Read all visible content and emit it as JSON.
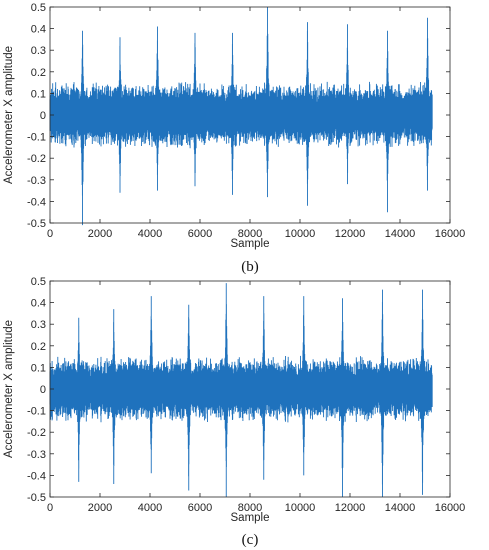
{
  "colors": {
    "series": "#1f72bd",
    "axis": "#262626",
    "background": "#ffffff"
  },
  "chart_data": [
    {
      "type": "line",
      "caption": "(b)",
      "title": "",
      "xlabel": "Sample",
      "ylabel": "Accelerometer X amplitude",
      "xlim": [
        0,
        16000
      ],
      "ylim": [
        -0.5,
        0.5
      ],
      "xticks": [
        0,
        2000,
        4000,
        6000,
        8000,
        10000,
        12000,
        14000,
        16000
      ],
      "yticks": [
        -0.5,
        -0.4,
        -0.3,
        -0.2,
        -0.1,
        0,
        0.1,
        0.2,
        0.3,
        0.4,
        0.5
      ],
      "grid": false,
      "series": [
        {
          "n_samples": 15300,
          "noise_amplitude": 0.12,
          "peaks": [
            {
              "x": 1300,
              "max": 0.39,
              "min": -0.51
            },
            {
              "x": 2800,
              "max": 0.36,
              "min": -0.36
            },
            {
              "x": 4300,
              "max": 0.41,
              "min": -0.35
            },
            {
              "x": 5800,
              "max": 0.38,
              "min": -0.33
            },
            {
              "x": 7300,
              "max": 0.38,
              "min": -0.37
            },
            {
              "x": 8700,
              "max": 0.5,
              "min": -0.38
            },
            {
              "x": 10300,
              "max": 0.43,
              "min": -0.42
            },
            {
              "x": 11900,
              "max": 0.42,
              "min": -0.32
            },
            {
              "x": 13500,
              "max": 0.39,
              "min": -0.45
            },
            {
              "x": 15100,
              "max": 0.45,
              "min": -0.35
            }
          ]
        }
      ]
    },
    {
      "type": "line",
      "caption": "(c)",
      "title": "",
      "xlabel": "Sample",
      "ylabel": "Accelerometer X amplitude",
      "xlim": [
        0,
        16000
      ],
      "ylim": [
        -0.5,
        0.5
      ],
      "xticks": [
        0,
        2000,
        4000,
        6000,
        8000,
        10000,
        12000,
        14000,
        16000
      ],
      "yticks": [
        -0.5,
        -0.4,
        -0.3,
        -0.2,
        -0.1,
        0,
        0.1,
        0.2,
        0.3,
        0.4,
        0.5
      ],
      "grid": false,
      "series": [
        {
          "n_samples": 15300,
          "noise_amplitude": 0.12,
          "peaks": [
            {
              "x": 1150,
              "max": 0.33,
              "min": -0.43
            },
            {
              "x": 2550,
              "max": 0.37,
              "min": -0.44
            },
            {
              "x": 4050,
              "max": 0.43,
              "min": -0.39
            },
            {
              "x": 5550,
              "max": 0.39,
              "min": -0.47
            },
            {
              "x": 7050,
              "max": 0.49,
              "min": -0.5
            },
            {
              "x": 8550,
              "max": 0.43,
              "min": -0.42
            },
            {
              "x": 10150,
              "max": 0.43,
              "min": -0.4
            },
            {
              "x": 11700,
              "max": 0.42,
              "min": -0.5
            },
            {
              "x": 13300,
              "max": 0.46,
              "min": -0.5
            },
            {
              "x": 14900,
              "max": 0.46,
              "min": -0.49
            }
          ]
        }
      ]
    }
  ]
}
